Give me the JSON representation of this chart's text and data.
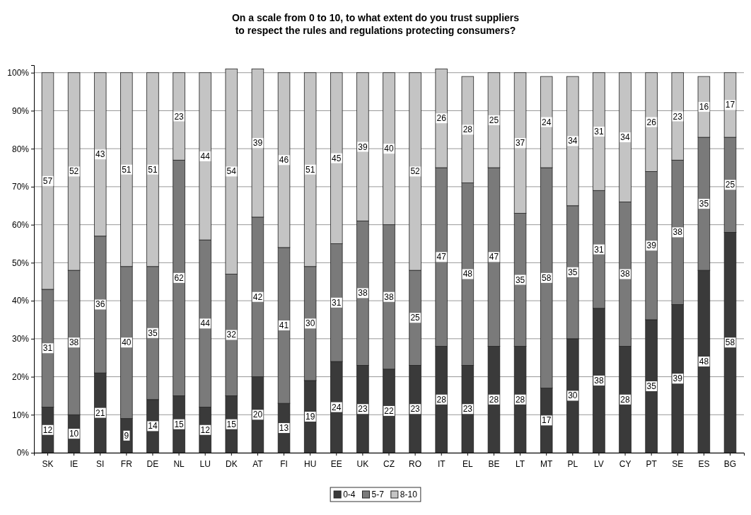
{
  "chart_data": {
    "type": "bar",
    "stacked": true,
    "title": "On a scale from 0 to 10, to what extent do you trust suppliers\nto respect the rules and regulations protecting consumers?",
    "categories": [
      "SK",
      "IE",
      "SI",
      "FR",
      "DE",
      "NL",
      "LU",
      "DK",
      "AT",
      "FI",
      "HU",
      "EE",
      "UK",
      "CZ",
      "RO",
      "IT",
      "EL",
      "BE",
      "LT",
      "MT",
      "PL",
      "LV",
      "CY",
      "PT",
      "SE",
      "ES",
      "BG"
    ],
    "series": [
      {
        "name": "0-4",
        "color": "#3a3a3a",
        "values": [
          12,
          10,
          21,
          9,
          14,
          15,
          12,
          15,
          20,
          13,
          19,
          24,
          23,
          22,
          23,
          28,
          23,
          28,
          28,
          17,
          30,
          38,
          28,
          35,
          39,
          48,
          58
        ]
      },
      {
        "name": "5-7",
        "color": "#7a7a7a",
        "values": [
          31,
          38,
          36,
          40,
          35,
          62,
          44,
          32,
          42,
          41,
          30,
          31,
          38,
          38,
          25,
          47,
          48,
          47,
          35,
          58,
          35,
          31,
          38,
          39,
          38,
          35,
          25
        ]
      },
      {
        "name": "8-10",
        "color": "#c4c4c4",
        "values": [
          57,
          52,
          43,
          51,
          51,
          23,
          44,
          54,
          39,
          46,
          51,
          45,
          39,
          40,
          52,
          26,
          28,
          25,
          37,
          24,
          34,
          31,
          34,
          26,
          23,
          16,
          17
        ]
      }
    ],
    "ylim": [
      0,
      102
    ],
    "yticks": [
      {
        "value": 0,
        "label": "0%"
      },
      {
        "value": 10,
        "label": "10%"
      },
      {
        "value": 20,
        "label": "20%"
      },
      {
        "value": 30,
        "label": "30%"
      },
      {
        "value": 40,
        "label": "40%"
      },
      {
        "value": 50,
        "label": "50%"
      },
      {
        "value": 60,
        "label": "60%"
      },
      {
        "value": 70,
        "label": "70%"
      },
      {
        "value": 80,
        "label": "80%"
      },
      {
        "value": 90,
        "label": "90%"
      },
      {
        "value": 100,
        "label": "100%"
      }
    ],
    "grid": "y",
    "data_labels": true,
    "legend": "bottom"
  }
}
